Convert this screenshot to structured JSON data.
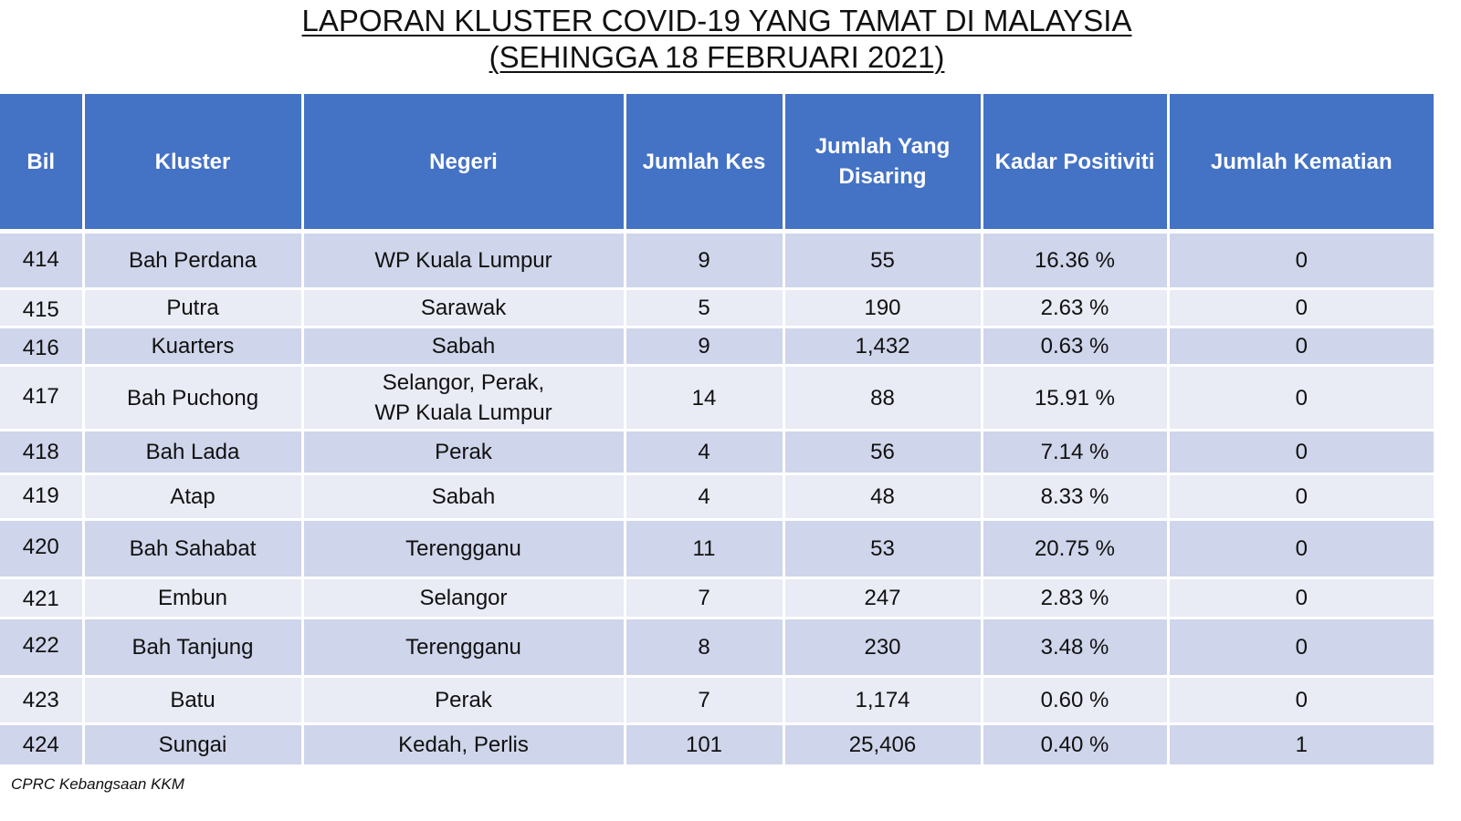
{
  "title": {
    "line1": "LAPORAN KLUSTER COVID-19 YANG TAMAT DI MALAYSIA",
    "line2": "(SEHINGGA 18 FEBRUARI 2021)"
  },
  "table": {
    "headers": {
      "bil": "Bil",
      "kluster": "Kluster",
      "negeri": "Negeri",
      "jumlah_kes": "Jumlah Kes",
      "jumlah_disaring": "Jumlah Yang Disaring",
      "kadar_positiviti": "Kadar Positiviti",
      "jumlah_kematian": "Jumlah Kematian"
    },
    "rows": [
      {
        "bil": "414",
        "kluster": "Bah Perdana",
        "negeri": "WP Kuala Lumpur",
        "negeri2": "",
        "kes": "9",
        "disaring": "55",
        "positiviti": "16.36 %",
        "kematian": "0"
      },
      {
        "bil": "415",
        "kluster": "Putra",
        "negeri": "Sarawak",
        "negeri2": "",
        "kes": "5",
        "disaring": "190",
        "positiviti": "2.63 %",
        "kematian": "0"
      },
      {
        "bil": "416",
        "kluster": "Kuarters",
        "negeri": "Sabah",
        "negeri2": "",
        "kes": "9",
        "disaring": "1,432",
        "positiviti": "0.63 %",
        "kematian": "0"
      },
      {
        "bil": "417",
        "kluster": "Bah Puchong",
        "negeri": "Selangor, Perak,",
        "negeri2": "WP Kuala Lumpur",
        "kes": "14",
        "disaring": "88",
        "positiviti": "15.91 %",
        "kematian": "0"
      },
      {
        "bil": "418",
        "kluster": "Bah Lada",
        "negeri": "Perak",
        "negeri2": "",
        "kes": "4",
        "disaring": "56",
        "positiviti": "7.14 %",
        "kematian": "0"
      },
      {
        "bil": "419",
        "kluster": "Atap",
        "negeri": "Sabah",
        "negeri2": "",
        "kes": "4",
        "disaring": "48",
        "positiviti": "8.33 %",
        "kematian": "0"
      },
      {
        "bil": "420",
        "kluster": "Bah Sahabat",
        "negeri": "Terengganu",
        "negeri2": "",
        "kes": "11",
        "disaring": "53",
        "positiviti": "20.75 %",
        "kematian": "0"
      },
      {
        "bil": "421",
        "kluster": "Embun",
        "negeri": "Selangor",
        "negeri2": "",
        "kes": "7",
        "disaring": "247",
        "positiviti": "2.83 %",
        "kematian": "0"
      },
      {
        "bil": "422",
        "kluster": "Bah Tanjung",
        "negeri": "Terengganu",
        "negeri2": "",
        "kes": "8",
        "disaring": "230",
        "positiviti": "3.48 %",
        "kematian": "0"
      },
      {
        "bil": "423",
        "kluster": "Batu",
        "negeri": "Perak",
        "negeri2": "",
        "kes": "7",
        "disaring": "1,174",
        "positiviti": "0.60 %",
        "kematian": "0"
      },
      {
        "bil": "424",
        "kluster": "Sungai",
        "negeri": "Kedah, Perlis",
        "negeri2": "",
        "kes": "101",
        "disaring": "25,406",
        "positiviti": "0.40 %",
        "kematian": "1"
      }
    ]
  },
  "footer": {
    "source": "CPRC Kebangsaan KKM"
  },
  "colors": {
    "header_bg": "#4472c4",
    "row_odd_bg": "#cfd5ea",
    "row_even_bg": "#e9ebf5"
  }
}
